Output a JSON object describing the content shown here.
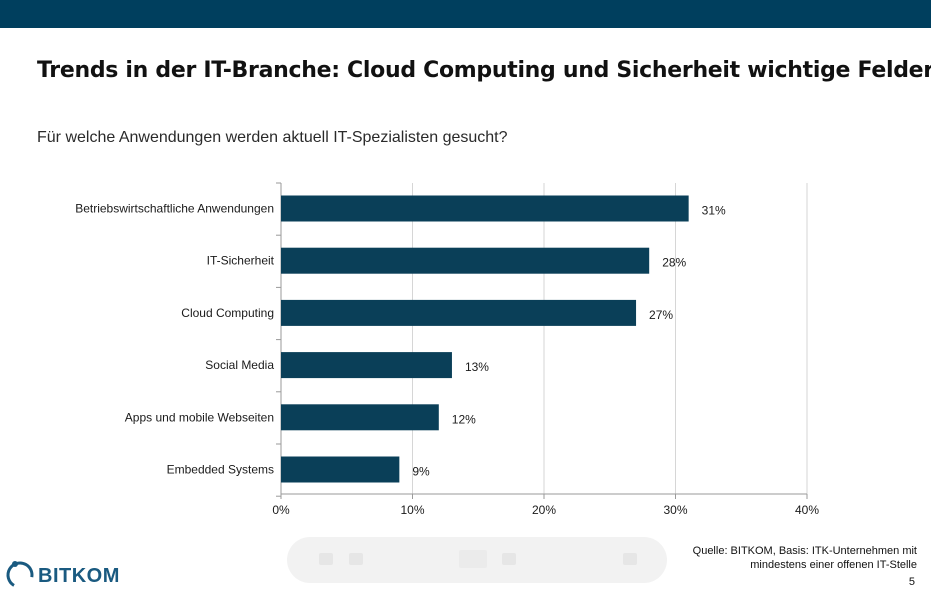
{
  "slide": {
    "title": "Trends in der IT-Branche: Cloud Computing und Sicherheit wichtige Felder",
    "subtitle": "Für welche Anwendungen werden aktuell IT-Spezialisten gesucht?",
    "source_line1": "Quelle: BITKOM, Basis: ITK-Unternehmen mit",
    "source_line2": "mindestens einer offenen IT-Stelle",
    "page_number": "5",
    "logo_text": "BITKOM",
    "topbar_color": "#003f5e"
  },
  "chart_data": {
    "type": "bar",
    "orientation": "horizontal",
    "categories": [
      "Betriebswirtschaftliche Anwendungen",
      "IT-Sicherheit",
      "Cloud Computing",
      "Social Media",
      "Apps und mobile Webseiten",
      "Embedded Systems"
    ],
    "values": [
      31,
      28,
      27,
      13,
      12,
      9
    ],
    "data_labels": [
      "31%",
      "28%",
      "27%",
      "13%",
      "12%",
      "9%"
    ],
    "xlim": [
      0,
      40
    ],
    "xticks": [
      0,
      10,
      20,
      30,
      40
    ],
    "xtick_labels": [
      "0%",
      "10%",
      "20%",
      "30%",
      "40%"
    ],
    "grid": true,
    "bar_color": "#0a3f58"
  }
}
